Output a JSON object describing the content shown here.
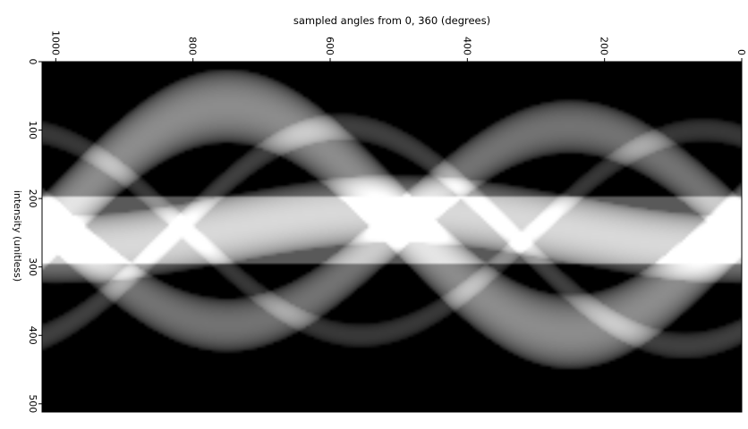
{
  "chart_data": {
    "type": "heatmap",
    "title": "sampled angles from 0, 360 (degrees)",
    "xlabel": "",
    "ylabel": "intensity (unitless)",
    "x_ticks": [
      1000,
      800,
      600,
      400,
      200,
      0
    ],
    "y_ticks": [
      0,
      100,
      200,
      300,
      400,
      500
    ],
    "xlim": [
      1020,
      0
    ],
    "ylim": [
      0,
      512
    ],
    "colormap": "gray",
    "background": "#000000",
    "grid": false,
    "sinusoids": [
      {
        "center": 230,
        "amplitude": 165,
        "phase_deg": 0,
        "width": 55,
        "intensity": 0.55
      },
      {
        "center": 240,
        "amplitude": 145,
        "phase_deg": 180,
        "width": 40,
        "intensity": 0.45
      },
      {
        "center": 255,
        "amplitude": 160,
        "phase_deg": 60,
        "width": 20,
        "intensity": 0.25
      },
      {
        "center": 250,
        "amplitude": 150,
        "phase_deg": 250,
        "width": 18,
        "intensity": 0.22
      },
      {
        "center": 245,
        "amplitude": 30,
        "phase_deg": 90,
        "width": 50,
        "intensity": 0.5
      }
    ],
    "band": {
      "y_from": 195,
      "y_to": 295,
      "intensity": 0.35
    }
  }
}
